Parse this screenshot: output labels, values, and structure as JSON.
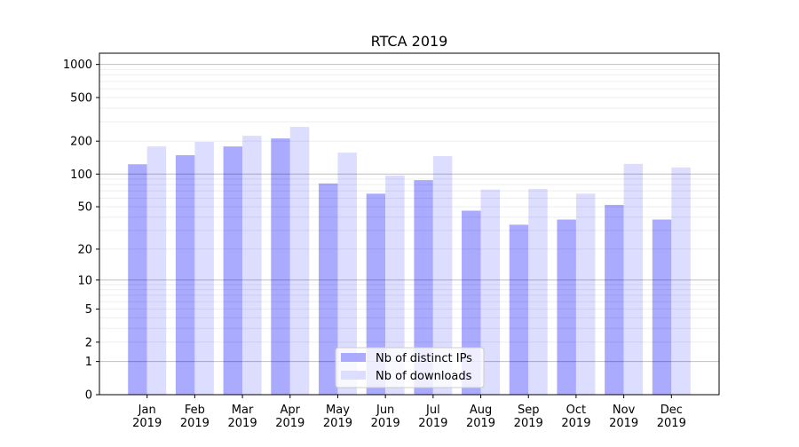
{
  "chart_data": {
    "type": "bar",
    "title": "RTCA 2019",
    "xlabel": "",
    "ylabel": "",
    "yscale": "log(y+1)",
    "ylim": [
      0,
      1350
    ],
    "yticks": [
      0,
      1,
      2,
      5,
      10,
      20,
      50,
      100,
      200,
      500,
      1000
    ],
    "grid": true,
    "legend_position": "bottom-center",
    "categories": [
      "Jan\n2019",
      "Feb\n2019",
      "Mar\n2019",
      "Apr\n2019",
      "May\n2019",
      "Jun\n2019",
      "Jul\n2019",
      "Aug\n2019",
      "Sep\n2019",
      "Oct\n2019",
      "Nov\n2019",
      "Dec\n2019"
    ],
    "series": [
      {
        "name": "Nb of distinct IPs",
        "color": "#aaaaff",
        "values": [
          123,
          149,
          179,
          212,
          82,
          66,
          88,
          46,
          34,
          38,
          52,
          38
        ]
      },
      {
        "name": "Nb of downloads",
        "color": "#ddddff",
        "values": [
          179,
          197,
          224,
          270,
          157,
          97,
          146,
          72,
          73,
          66,
          124,
          115
        ]
      }
    ]
  }
}
